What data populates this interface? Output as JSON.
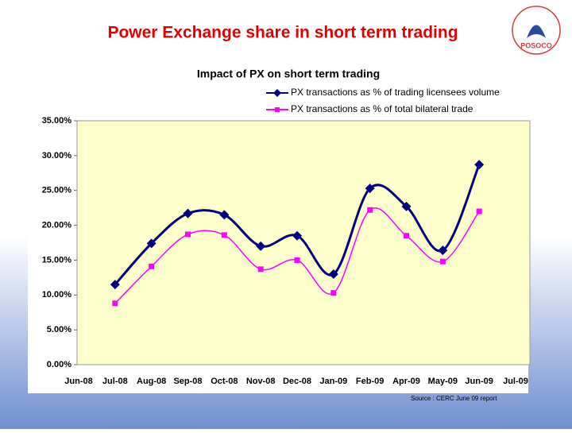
{
  "slide_title": "Power Exchange share in short term trading",
  "logo_text": "POSOCO",
  "source": "Source : CERC June 09 report",
  "chart_data": {
    "type": "line",
    "title": "Impact of PX on short term trading",
    "categories": [
      "Jun-08",
      "Jul-08",
      "Aug-08",
      "Sep-08",
      "Oct-08",
      "Nov-08",
      "Dec-08",
      "Jan-09",
      "Feb-09",
      "Apr-09",
      "May-09",
      "Jun-09",
      "Jul-09"
    ],
    "series": [
      {
        "name": "PX transactions as % of trading licensees volume",
        "color": "#000080",
        "marker": "diamond",
        "values": [
          null,
          11.5,
          17.4,
          21.7,
          21.5,
          17.0,
          18.5,
          13.0,
          25.3,
          22.7,
          16.4,
          28.7,
          null
        ]
      },
      {
        "name": "PX transactions as % of total bilateral trade",
        "color": "#ff00ff",
        "marker": "square",
        "values": [
          null,
          8.8,
          14.1,
          18.7,
          18.6,
          13.7,
          15.0,
          10.3,
          22.2,
          18.5,
          14.8,
          22.0,
          null
        ]
      }
    ],
    "ylim": [
      0,
      35
    ],
    "yticks": [
      {
        "value": 0,
        "label": "0.00%"
      },
      {
        "value": 5,
        "label": "5.00%"
      },
      {
        "value": 10,
        "label": "10.00%"
      },
      {
        "value": 15,
        "label": "15.00%"
      },
      {
        "value": 20,
        "label": "20.00%"
      },
      {
        "value": 25,
        "label": "25.00%"
      },
      {
        "value": 30,
        "label": "30.00%"
      },
      {
        "value": 35,
        "label": "35.00%"
      }
    ],
    "smooth": true,
    "legend": "top-right"
  }
}
